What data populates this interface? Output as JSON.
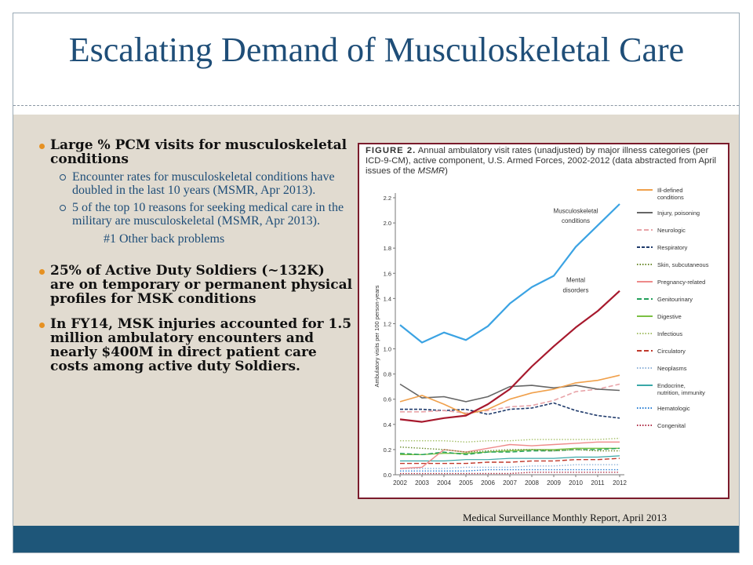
{
  "slide": {
    "title": "Escalating Demand of Musculoskeletal Care",
    "bullet1": "Large % PCM visits for musculoskeletal conditions",
    "sub1": "Encounter rates for musculoskeletal conditions have doubled in the last 10 years (MSMR, Apr 2013).",
    "sub2": "5 of the top 10 reasons for seeking medical care in the military are musculoskeletal (MSMR, Apr 2013).",
    "sub3": "#1 Other back problems",
    "bullet2": "25% of Active Duty Soldiers (~132K) are on temporary or permanent physical profiles for MSK conditions",
    "bullet3": "In FY14, MSK injuries accounted for 1.5 million ambulatory encounters and nearly $400M in direct patient care costs among active duty Soldiers.",
    "source": "Medical Surveillance Monthly Report, April 2013"
  },
  "figure": {
    "label": "FIGURE 2.",
    "caption": "Annual ambulatory visit rates (unadjusted) by major illness categories (per ICD-9-CM), active component, U.S. Armed Forces, 2002-2012 (data abstracted from April issues of the",
    "caption_italic": "MSMR",
    "caption_end": ")"
  },
  "chart_data": {
    "type": "line",
    "ylabel": "Ambulatory visits per 100 person-years",
    "ylim": [
      0,
      2.2
    ],
    "yticks": [
      "0.0",
      "0.2",
      "0.4",
      "0.6",
      "0.8",
      "1.0",
      "1.2",
      "1.4",
      "1.6",
      "1.8",
      "2.0",
      "2.2"
    ],
    "x": [
      "2002",
      "2003",
      "2004",
      "2005",
      "2006",
      "2007",
      "2008",
      "2009",
      "2010",
      "2011",
      "2012"
    ],
    "annotations": [
      {
        "text": "Musculoskeletal",
        "x": "2010",
        "y": 2.08
      },
      {
        "text": "conditions",
        "x": "2010",
        "y": 2.0
      },
      {
        "text": "Mental",
        "x": "2010",
        "y": 1.53
      },
      {
        "text": "disorders",
        "x": "2010",
        "y": 1.45
      }
    ],
    "series": [
      {
        "name": "Musculoskeletal conditions",
        "color": "#3ba3e3",
        "dash": "",
        "width": 2.2,
        "values": [
          1.19,
          1.05,
          1.13,
          1.07,
          1.18,
          1.36,
          1.49,
          1.58,
          1.81,
          1.98,
          2.15
        ]
      },
      {
        "name": "Mental disorders",
        "color": "#a7192d",
        "dash": "",
        "width": 2.2,
        "values": [
          0.44,
          0.42,
          0.45,
          0.47,
          0.56,
          0.68,
          0.86,
          1.02,
          1.17,
          1.3,
          1.46
        ]
      },
      {
        "name": "Ill-defined conditions",
        "color": "#f0a04b",
        "dash": "",
        "width": 1.6,
        "values": [
          0.58,
          0.63,
          0.56,
          0.48,
          0.52,
          0.6,
          0.65,
          0.68,
          0.73,
          0.75,
          0.79
        ]
      },
      {
        "name": "Injury, poisoning",
        "color": "#666666",
        "dash": "",
        "width": 1.6,
        "values": [
          0.72,
          0.61,
          0.62,
          0.58,
          0.62,
          0.7,
          0.71,
          0.69,
          0.71,
          0.68,
          0.67
        ]
      },
      {
        "name": "Neurologic",
        "color": "#e8a3a8",
        "dash": "6,3",
        "width": 1.6,
        "values": [
          0.5,
          0.5,
          0.51,
          0.49,
          0.51,
          0.54,
          0.55,
          0.59,
          0.66,
          0.68,
          0.72
        ]
      },
      {
        "name": "Respiratory",
        "color": "#1f3a6b",
        "dash": "4,2",
        "width": 1.6,
        "values": [
          0.52,
          0.52,
          0.51,
          0.52,
          0.48,
          0.52,
          0.53,
          0.57,
          0.51,
          0.47,
          0.45
        ]
      },
      {
        "name": "Skin, subcutaneous",
        "color": "#6d8c2f",
        "dash": "1.5,2",
        "width": 1.4,
        "values": [
          0.22,
          0.21,
          0.2,
          0.18,
          0.19,
          0.2,
          0.2,
          0.19,
          0.2,
          0.19,
          0.19
        ]
      },
      {
        "name": "Pregnancy-related",
        "color": "#ee8a8a",
        "dash": "",
        "width": 1.4,
        "values": [
          0.05,
          0.06,
          0.2,
          0.18,
          0.21,
          0.24,
          0.23,
          0.24,
          0.25,
          0.26,
          0.26
        ]
      },
      {
        "name": "Genitourinary",
        "color": "#22a05a",
        "dash": "6,3",
        "width": 1.4,
        "values": [
          0.17,
          0.16,
          0.18,
          0.16,
          0.18,
          0.18,
          0.19,
          0.19,
          0.2,
          0.2,
          0.21
        ]
      },
      {
        "name": "Digestive",
        "color": "#7bc043",
        "dash": "",
        "width": 1.4,
        "values": [
          0.16,
          0.16,
          0.17,
          0.17,
          0.18,
          0.19,
          0.2,
          0.2,
          0.21,
          0.21,
          0.21
        ]
      },
      {
        "name": "Infectious",
        "color": "#a6c06a",
        "dash": "1.5,2",
        "width": 1.4,
        "values": [
          0.27,
          0.27,
          0.27,
          0.26,
          0.27,
          0.27,
          0.28,
          0.28,
          0.28,
          0.28,
          0.29
        ]
      },
      {
        "name": "Circulatory",
        "color": "#c0392b",
        "dash": "6,3",
        "width": 1.4,
        "values": [
          0.09,
          0.09,
          0.09,
          0.09,
          0.1,
          0.1,
          0.11,
          0.11,
          0.12,
          0.12,
          0.13
        ]
      },
      {
        "name": "Neoplasms",
        "color": "#8fb3d9",
        "dash": "1.5,2",
        "width": 1.4,
        "values": [
          0.05,
          0.05,
          0.05,
          0.06,
          0.06,
          0.06,
          0.07,
          0.07,
          0.08,
          0.08,
          0.08
        ]
      },
      {
        "name": "Endocrine, nutrition, immunity",
        "color": "#3aa8a8",
        "dash": "",
        "width": 1.2,
        "values": [
          0.11,
          0.11,
          0.11,
          0.12,
          0.12,
          0.13,
          0.13,
          0.13,
          0.14,
          0.14,
          0.15
        ]
      },
      {
        "name": "Hematologic",
        "color": "#2a7fd4",
        "dash": "1.5,2",
        "width": 1.4,
        "values": [
          0.03,
          0.03,
          0.03,
          0.03,
          0.04,
          0.04,
          0.04,
          0.04,
          0.04,
          0.04,
          0.04
        ]
      },
      {
        "name": "Congenital",
        "color": "#b03048",
        "dash": "1.5,2",
        "width": 1.4,
        "values": [
          0.01,
          0.01,
          0.01,
          0.01,
          0.01,
          0.01,
          0.02,
          0.02,
          0.02,
          0.02,
          0.02
        ]
      }
    ],
    "legend": [
      {
        "label": "Ill-defined conditions",
        "lines": [
          "Ill-defined",
          "conditions"
        ],
        "color": "#f0a04b",
        "dash": ""
      },
      {
        "label": "Injury, poisoning",
        "lines": [
          "Injury, poisoning"
        ],
        "color": "#666666",
        "dash": ""
      },
      {
        "label": "Neurologic",
        "lines": [
          "Neurologic"
        ],
        "color": "#e8a3a8",
        "dash": "6,3"
      },
      {
        "label": "Respiratory",
        "lines": [
          "Respiratory"
        ],
        "color": "#1f3a6b",
        "dash": "4,2"
      },
      {
        "label": "Skin, subcutaneous",
        "lines": [
          "Skin, subcutaneous"
        ],
        "color": "#6d8c2f",
        "dash": "1.5,2"
      },
      {
        "label": "Pregnancy-related",
        "lines": [
          "Pregnancy-related"
        ],
        "color": "#ee8a8a",
        "dash": ""
      },
      {
        "label": "Genitourinary",
        "lines": [
          "Genitourinary"
        ],
        "color": "#22a05a",
        "dash": "6,3"
      },
      {
        "label": "Digestive",
        "lines": [
          "Digestive"
        ],
        "color": "#7bc043",
        "dash": ""
      },
      {
        "label": "Infectious",
        "lines": [
          "Infectious"
        ],
        "color": "#a6c06a",
        "dash": "1.5,2"
      },
      {
        "label": "Circulatory",
        "lines": [
          "Circulatory"
        ],
        "color": "#c0392b",
        "dash": "6,3"
      },
      {
        "label": "Neoplasms",
        "lines": [
          "Neoplasms"
        ],
        "color": "#8fb3d9",
        "dash": "1.5,2"
      },
      {
        "label": "Endocrine, nutrition, immunity",
        "lines": [
          "Endocrine,",
          "nutrition, immunity"
        ],
        "color": "#3aa8a8",
        "dash": ""
      },
      {
        "label": "Hematologic",
        "lines": [
          "Hematologic"
        ],
        "color": "#2a7fd4",
        "dash": "1.5,2"
      },
      {
        "label": "Congenital",
        "lines": [
          "Congenital"
        ],
        "color": "#b03048",
        "dash": "1.5,2"
      }
    ],
    "legend_position": "right"
  }
}
